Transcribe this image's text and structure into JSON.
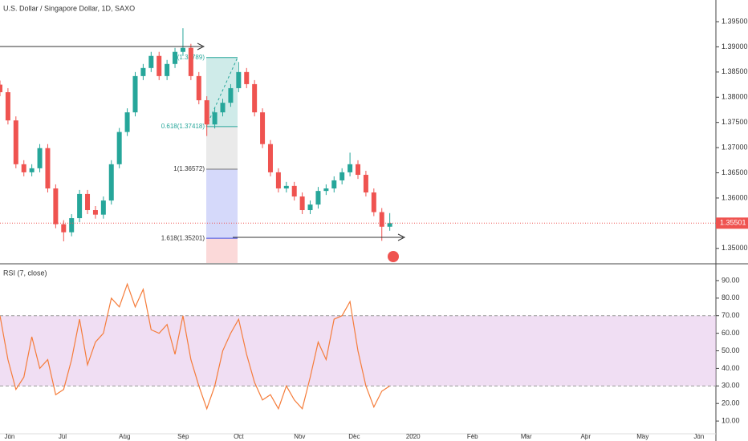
{
  "chart_data": [
    {
      "type": "candlestick",
      "title": "U.S. Dollar / Singapore Dollar, 1D, SAXO",
      "x": [
        0,
        3,
        6,
        9,
        12,
        15,
        18,
        21,
        24,
        27,
        30,
        33,
        36,
        39,
        42,
        45,
        48,
        51,
        54,
        57,
        60,
        63,
        66,
        69,
        72,
        75,
        78,
        81,
        84,
        87,
        90,
        93,
        96,
        99,
        102,
        105,
        108,
        111,
        114,
        117,
        120,
        123,
        126,
        129,
        132,
        135,
        138,
        141,
        144,
        147
      ],
      "open": [
        1.3825,
        1.381,
        1.3754,
        1.3667,
        1.3651,
        1.3659,
        1.3699,
        1.3619,
        1.3548,
        1.3532,
        1.356,
        1.3608,
        1.3576,
        1.3567,
        1.3595,
        1.3667,
        1.3731,
        1.377,
        1.3842,
        1.3858,
        1.3882,
        1.3842,
        1.3866,
        1.389,
        1.3898,
        1.3842,
        1.3794,
        1.3746,
        1.377,
        1.3789,
        1.3818,
        1.385,
        1.3826,
        1.377,
        1.3707,
        1.3651,
        1.3619,
        1.3624,
        1.3603,
        1.3576,
        1.3587,
        1.3614,
        1.3619,
        1.3635,
        1.3651,
        1.3667,
        1.3646,
        1.3611,
        1.3572,
        1.3543
      ],
      "high": [
        1.3833,
        1.3818,
        1.3762,
        1.3675,
        1.3667,
        1.3707,
        1.3707,
        1.3627,
        1.3556,
        1.3568,
        1.3616,
        1.3616,
        1.3584,
        1.3603,
        1.3675,
        1.3739,
        1.3778,
        1.385,
        1.3866,
        1.389,
        1.389,
        1.3874,
        1.3898,
        1.3937,
        1.3906,
        1.385,
        1.3802,
        1.3778,
        1.3797,
        1.3826,
        1.387,
        1.3858,
        1.3834,
        1.3778,
        1.3715,
        1.3659,
        1.3632,
        1.3632,
        1.3611,
        1.3595,
        1.3622,
        1.3627,
        1.3643,
        1.3659,
        1.369,
        1.3675,
        1.3654,
        1.3619,
        1.358,
        1.357
      ],
      "low": [
        1.3802,
        1.3746,
        1.3659,
        1.3643,
        1.3643,
        1.3651,
        1.3611,
        1.354,
        1.3514,
        1.3524,
        1.3552,
        1.3568,
        1.3559,
        1.3559,
        1.3587,
        1.3659,
        1.3723,
        1.3762,
        1.3834,
        1.385,
        1.3834,
        1.3834,
        1.3858,
        1.3882,
        1.3834,
        1.3786,
        1.3723,
        1.3738,
        1.3762,
        1.3781,
        1.381,
        1.3818,
        1.3762,
        1.3699,
        1.3643,
        1.3611,
        1.3611,
        1.3595,
        1.3568,
        1.3568,
        1.3579,
        1.3606,
        1.3611,
        1.3627,
        1.3643,
        1.3638,
        1.3603,
        1.3564,
        1.3515,
        1.3535
      ],
      "close": [
        1.381,
        1.3754,
        1.3667,
        1.3651,
        1.3659,
        1.3699,
        1.3619,
        1.3548,
        1.3532,
        1.356,
        1.3608,
        1.3576,
        1.3567,
        1.3595,
        1.3667,
        1.3731,
        1.377,
        1.3842,
        1.3858,
        1.3882,
        1.3842,
        1.3866,
        1.389,
        1.3898,
        1.3842,
        1.3794,
        1.3746,
        1.377,
        1.3789,
        1.3818,
        1.385,
        1.3826,
        1.377,
        1.3707,
        1.3651,
        1.3619,
        1.3624,
        1.3603,
        1.3576,
        1.3587,
        1.3614,
        1.3619,
        1.3635,
        1.3651,
        1.3667,
        1.3646,
        1.3611,
        1.3572,
        1.3543,
        1.355
      ],
      "up_color": "#26a69a",
      "down_color": "#ef5350",
      "xlim": [
        0,
        270
      ],
      "ylim": [
        1.3471,
        1.3993
      ],
      "yticks": [
        {
          "value": 1.35,
          "label": "1.35000"
        },
        {
          "value": 1.355,
          "label": "1.35500"
        },
        {
          "value": 1.36,
          "label": "1.36000"
        },
        {
          "value": 1.365,
          "label": "1.36500"
        },
        {
          "value": 1.37,
          "label": "1.37000"
        },
        {
          "value": 1.375,
          "label": "1.37500"
        },
        {
          "value": 1.38,
          "label": "1.38000"
        },
        {
          "value": 1.385,
          "label": "1.38500"
        },
        {
          "value": 1.39,
          "label": "1.39000"
        },
        {
          "value": 1.395,
          "label": "1.39500"
        }
      ],
      "last_price": {
        "value": 1.35501,
        "label": "1.35501"
      },
      "fib": {
        "levels": [
          1.38789,
          1.37418,
          1.36572,
          1.35201
        ],
        "labels": [
          "(1.38789)",
          "0.618(1.37418)",
          "1(1.36572)",
          "1.618(1.35201)"
        ]
      }
    },
    {
      "type": "line",
      "title": "RSI (7, close)",
      "x": [
        0,
        3,
        6,
        9,
        12,
        15,
        18,
        21,
        24,
        27,
        30,
        33,
        36,
        39,
        42,
        45,
        48,
        51,
        54,
        57,
        60,
        63,
        66,
        69,
        72,
        75,
        78,
        81,
        84,
        87,
        90,
        93,
        96,
        99,
        102,
        105,
        108,
        111,
        114,
        117,
        120,
        123,
        126,
        129,
        132,
        135,
        138,
        141,
        144,
        147
      ],
      "values": [
        70,
        45,
        28,
        35,
        58,
        40,
        45,
        25,
        28,
        45,
        68,
        42,
        55,
        60,
        80,
        75,
        88,
        75,
        85,
        62,
        60,
        65,
        48,
        70,
        45,
        30,
        17,
        30,
        50,
        60,
        68,
        48,
        32,
        22,
        25,
        17,
        30,
        22,
        17,
        35,
        55,
        45,
        68,
        70,
        78,
        50,
        30,
        18,
        27,
        30
      ],
      "color": "#f57c3a",
      "xlim": [
        0,
        270
      ],
      "ylim": [
        3.2,
        99.1
      ],
      "yticks": [
        {
          "value": 10,
          "label": "10.00"
        },
        {
          "value": 20,
          "label": "20.00"
        },
        {
          "value": 30,
          "label": "30.00"
        },
        {
          "value": 40,
          "label": "40.00"
        },
        {
          "value": 50,
          "label": "50.00"
        },
        {
          "value": 60,
          "label": "60.00"
        },
        {
          "value": 70,
          "label": "70.00"
        },
        {
          "value": 80,
          "label": "80.00"
        },
        {
          "value": 90,
          "label": "90.00"
        }
      ],
      "bands": [
        70,
        30
      ],
      "band_color": "#e1bee7",
      "xticks": [
        {
          "value": 3.6,
          "label": "Jun"
        },
        {
          "value": 23.6,
          "label": "Jul"
        },
        {
          "value": 47,
          "label": "Aug"
        },
        {
          "value": 69.1,
          "label": "Sep"
        },
        {
          "value": 90,
          "label": "Oct"
        },
        {
          "value": 113,
          "label": "Nov"
        },
        {
          "value": 133.6,
          "label": "Dec"
        },
        {
          "value": 155.8,
          "label": "2020"
        },
        {
          "value": 178.2,
          "label": "Feb"
        },
        {
          "value": 198.5,
          "label": "Mar"
        },
        {
          "value": 220.9,
          "label": "Apr"
        },
        {
          "value": 242.4,
          "label": "May"
        },
        {
          "value": 263.6,
          "label": "Jun"
        }
      ]
    }
  ]
}
